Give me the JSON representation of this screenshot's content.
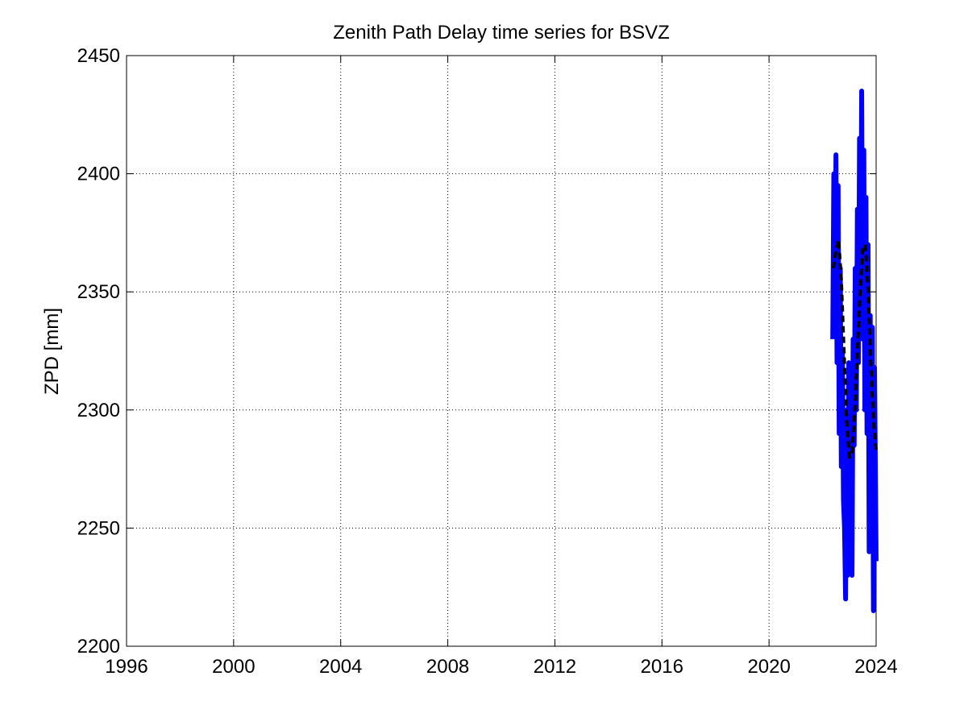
{
  "chart_data": {
    "type": "line",
    "title": "Zenith Path Delay time series for BSVZ",
    "y_label": "ZPD [mm]",
    "xlim": [
      1996,
      2024
    ],
    "xticks": [
      1996,
      2000,
      2004,
      2008,
      2012,
      2016,
      2020,
      2024
    ],
    "ylim": [
      2200,
      2450
    ],
    "yticks": [
      2200,
      2250,
      2300,
      2350,
      2400,
      2450
    ],
    "grid": true,
    "series": [
      {
        "color": "#0000ff",
        "style": "solid",
        "x": [
          2022.38,
          2022.42,
          2022.46,
          2022.5,
          2022.54,
          2022.58,
          2022.62,
          2022.66,
          2022.7,
          2022.74,
          2022.78,
          2022.82,
          2022.86,
          2022.9,
          2022.94,
          2022.98,
          2023.02,
          2023.06,
          2023.1,
          2023.14,
          2023.18,
          2023.22,
          2023.26,
          2023.3,
          2023.34,
          2023.38,
          2023.42,
          2023.46,
          2023.5,
          2023.54,
          2023.58,
          2023.62,
          2023.66,
          2023.7,
          2023.74,
          2023.78,
          2023.82,
          2023.86,
          2023.9,
          2023.94,
          2024.0
        ],
        "values": [
          2330,
          2400,
          2345,
          2408,
          2320,
          2395,
          2290,
          2360,
          2276,
          2325,
          2262,
          2250,
          2220,
          2300,
          2230,
          2320,
          2245,
          2310,
          2230,
          2330,
          2285,
          2360,
          2300,
          2385,
          2320,
          2415,
          2340,
          2435,
          2330,
          2410,
          2300,
          2390,
          2290,
          2370,
          2240,
          2340,
          2260,
          2335,
          2215,
          2318,
          2236
        ]
      },
      {
        "color": "#000000",
        "style": "dashed",
        "x": [
          2022.4,
          2022.5,
          2022.6,
          2022.7,
          2022.8,
          2022.9,
          2023.0,
          2023.1,
          2023.2,
          2023.3,
          2023.4,
          2023.5,
          2023.6,
          2023.7,
          2023.8,
          2023.9,
          2024.0
        ],
        "values": [
          2360,
          2368,
          2372,
          2355,
          2325,
          2295,
          2280,
          2282,
          2300,
          2325,
          2350,
          2368,
          2370,
          2350,
          2320,
          2295,
          2283
        ]
      }
    ]
  }
}
